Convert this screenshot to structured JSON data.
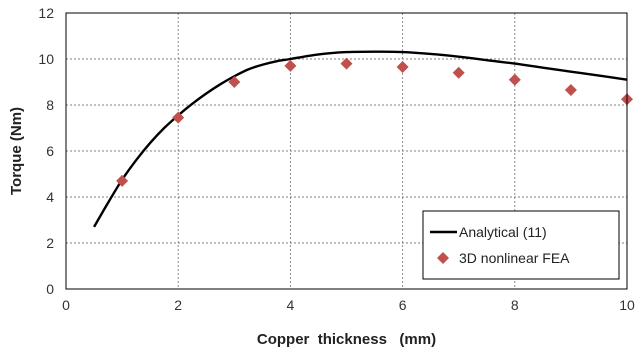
{
  "chart_data": {
    "type": "line",
    "xlabel": "Copper  thickness   (mm)",
    "ylabel": "Torque (Nm)",
    "xlim": [
      0,
      10
    ],
    "ylim": [
      0,
      12
    ],
    "xticks": [
      0,
      2,
      4,
      6,
      8,
      10
    ],
    "yticks": [
      0,
      2,
      4,
      6,
      8,
      10,
      12
    ],
    "grid": true,
    "legend_position": "bottom-right",
    "series": [
      {
        "name": "Analytical (11)",
        "style": "line",
        "color": "#000000",
        "x": [
          0.5,
          0.75,
          1.0,
          1.25,
          1.5,
          1.75,
          2.0,
          2.25,
          2.5,
          2.75,
          3.0,
          3.25,
          3.5,
          3.75,
          4.0,
          4.5,
          5.0,
          5.5,
          6.0,
          6.5,
          7.0,
          7.5,
          8.0,
          8.5,
          9.0,
          9.5,
          10.0
        ],
        "y": [
          2.7,
          3.75,
          4.75,
          5.6,
          6.35,
          7.0,
          7.55,
          8.05,
          8.5,
          8.9,
          9.25,
          9.55,
          9.75,
          9.9,
          10.0,
          10.2,
          10.3,
          10.32,
          10.3,
          10.22,
          10.1,
          9.95,
          9.8,
          9.62,
          9.45,
          9.28,
          9.1
        ]
      },
      {
        "name": "3D nonlinear FEA",
        "style": "markers",
        "marker": "diamond",
        "color": "#c0504d",
        "x": [
          1,
          2,
          3,
          4,
          5,
          6,
          7,
          8,
          9,
          10
        ],
        "y": [
          4.7,
          7.45,
          9.0,
          9.7,
          9.8,
          9.65,
          9.4,
          9.1,
          8.65,
          8.25
        ]
      }
    ]
  }
}
